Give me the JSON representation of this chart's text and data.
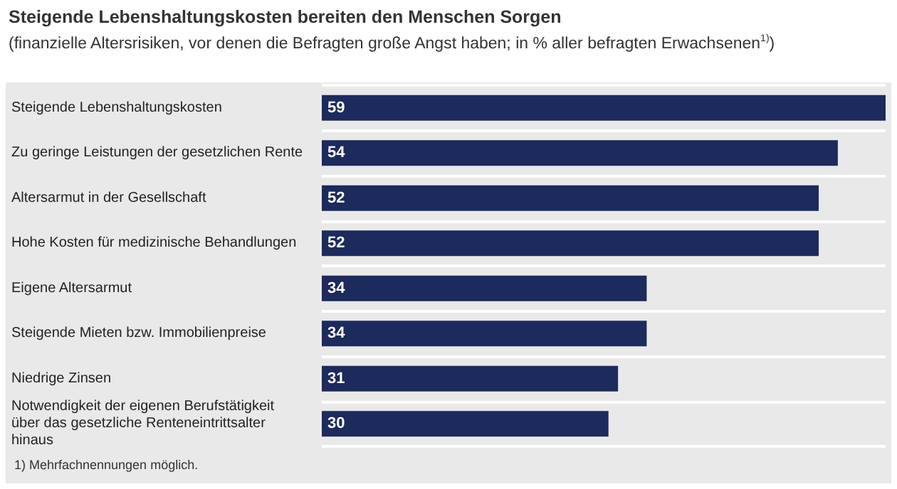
{
  "chart_data": {
    "type": "bar",
    "orientation": "horizontal",
    "title": "Steigende Lebenshaltungskosten bereiten den Menschen Sorgen",
    "subtitle": "(finanzielle Altersrisiken, vor denen die Befragten große Angst haben; in % aller befragten Erwachsenen$^{1)}$)",
    "categories": [
      "Steigende Lebenshaltungskosten",
      "Zu geringe Leistungen der gesetzlichen Rente",
      "Altersarmut in der Gesellschaft",
      "Hohe Kosten für medizinische Behandlungen",
      "Eigene Altersarmut",
      "Steigende Mieten bzw. Immobilienpreise",
      "Niedrige Zinsen",
      "Notwendigkeit der eigenen Berufstätigkeit über das gesetzliche Renteneintrittsalter hinaus"
    ],
    "values": [
      59,
      54,
      52,
      52,
      34,
      34,
      31,
      30
    ],
    "color": "#1c2a5c",
    "data_labels": true,
    "annotations": [
      "1)  Mehrfachnennungen möglich."
    ]
  }
}
